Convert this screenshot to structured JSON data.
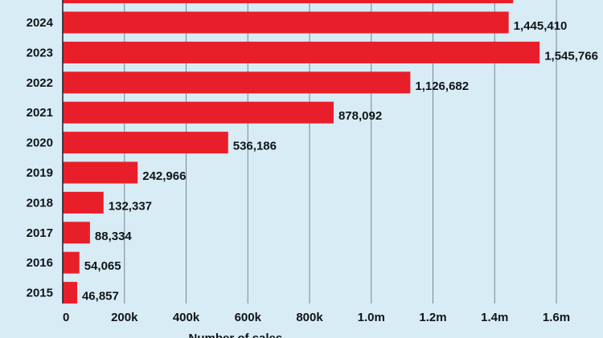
{
  "chart_data": {
    "type": "bar",
    "orientation": "horizontal",
    "categories": [
      "2015",
      "2016",
      "2017",
      "2018",
      "2019",
      "2020",
      "2021",
      "2022",
      "2023",
      "2024"
    ],
    "values": [
      46857,
      54065,
      88334,
      132337,
      242966,
      536186,
      878092,
      1126682,
      1545766,
      1445410
    ],
    "data_labels": [
      "46,857",
      "54,065",
      "88,334",
      "132,337",
      "242,966",
      "536,186",
      "878,092",
      "1,126,682",
      "1,545,766",
      "1,445,410"
    ],
    "partial_top_bar": {
      "label": "",
      "value": 1460000
    },
    "xticks": [
      0,
      200000,
      400000,
      600000,
      800000,
      1000000,
      1200000,
      1400000,
      1600000
    ],
    "xtick_labels": [
      "0",
      "200k",
      "400k",
      "600k",
      "800k",
      "1.0m",
      "1.2m",
      "1.4m",
      "1.6m"
    ],
    "xlim": [
      0,
      1600000
    ],
    "xlabel": "Number of sales",
    "grid": "vertical",
    "bar_color": "#e81f2a",
    "background_color": "#d7ecf5"
  }
}
